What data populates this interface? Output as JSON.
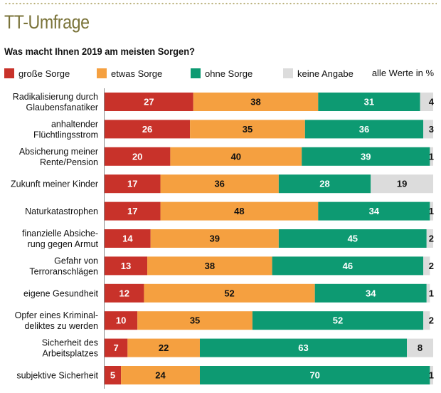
{
  "title": "TT-Umfrage",
  "subtitle": "Was macht Ihnen 2019 am meisten Sorgen?",
  "note": "alle Werte in %",
  "colors": {
    "grosse_sorge": "#c8322a",
    "etwas_sorge": "#f5a040",
    "ohne_sorge": "#0d9a72",
    "keine_angabe": "#dcdcdc",
    "title": "#7a7339"
  },
  "chart_data": {
    "type": "bar",
    "orientation": "horizontal-stacked",
    "categories": [
      [
        "Radikalisierung durch",
        "Glaubensfanatiker"
      ],
      [
        "anhaltender",
        "Flüchtlingsstrom"
      ],
      [
        "Absicherung meiner",
        "Rente/Pension"
      ],
      [
        "Zukunft meiner Kinder"
      ],
      [
        "Naturkatastrophen"
      ],
      [
        "finanzielle Absiche-",
        "rung gegen Armut"
      ],
      [
        "Gefahr von",
        "Terroranschlägen"
      ],
      [
        "eigene Gesundheit"
      ],
      [
        "Opfer eines Kriminal-",
        "deliktes zu werden"
      ],
      [
        "Sicherheit des",
        "Arbeitsplatzes"
      ],
      [
        "subjektive Sicherheit"
      ]
    ],
    "series": [
      {
        "name": "große Sorge",
        "color": "#c8322a",
        "values": [
          27,
          26,
          20,
          17,
          17,
          14,
          13,
          12,
          10,
          7,
          5
        ]
      },
      {
        "name": "etwas Sorge",
        "color": "#f5a040",
        "values": [
          38,
          35,
          40,
          36,
          48,
          39,
          38,
          52,
          35,
          22,
          24
        ]
      },
      {
        "name": "ohne Sorge",
        "color": "#0d9a72",
        "values": [
          31,
          36,
          39,
          28,
          34,
          45,
          46,
          34,
          52,
          63,
          70
        ]
      },
      {
        "name": "keine Angabe",
        "color": "#dcdcdc",
        "values": [
          4,
          3,
          1,
          19,
          1,
          2,
          2,
          1,
          2,
          8,
          1
        ]
      }
    ],
    "xlim": [
      0,
      100
    ],
    "grid": false,
    "legend": "top"
  }
}
